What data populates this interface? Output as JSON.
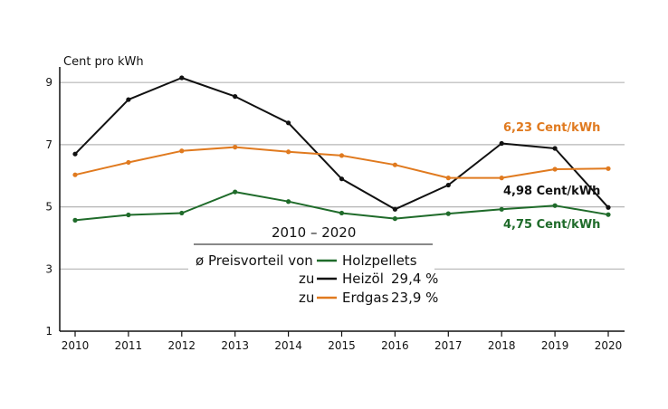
{
  "chart_data": {
    "type": "line",
    "ylabel": "Cent pro kWh",
    "xlabel": "",
    "x": [
      "2010",
      "2011",
      "2012",
      "2013",
      "2014",
      "2015",
      "2016",
      "2017",
      "2018",
      "2019",
      "2020"
    ],
    "ylim": [
      1,
      9.5
    ],
    "yticks": [
      1,
      3,
      5,
      7,
      9
    ],
    "grid": true,
    "series": [
      {
        "key": "heizoel",
        "color": "#111111",
        "values": [
          6.7,
          8.45,
          9.15,
          8.55,
          7.7,
          5.9,
          4.92,
          5.7,
          7.04,
          6.88,
          4.98
        ]
      },
      {
        "key": "erdgas",
        "color": "#e07a1f",
        "values": [
          6.03,
          6.43,
          6.8,
          6.92,
          6.77,
          6.65,
          6.35,
          5.93,
          5.93,
          6.21,
          6.23
        ]
      },
      {
        "key": "holzpellets",
        "color": "#1f6b2a",
        "values": [
          4.57,
          4.74,
          4.8,
          5.48,
          5.17,
          4.8,
          4.62,
          4.78,
          4.92,
          5.04,
          4.75
        ]
      }
    ],
    "end_labels": {
      "erdgas": "6,23 Cent/kWh",
      "heizoel": "4,98 Cent/kWh",
      "holzpellets": "4,75 Cent/kWh"
    },
    "legend": {
      "title": "2010 – 2020",
      "row1_prefix": "ø Preisvorteil von",
      "row1_label": "Holzpellets",
      "row2_prefix": "zu",
      "row2_label": "Heizöl",
      "row2_value": "29,4 %",
      "row3_prefix": "zu",
      "row3_label": "Erdgas",
      "row3_value": "23,9 %"
    }
  }
}
